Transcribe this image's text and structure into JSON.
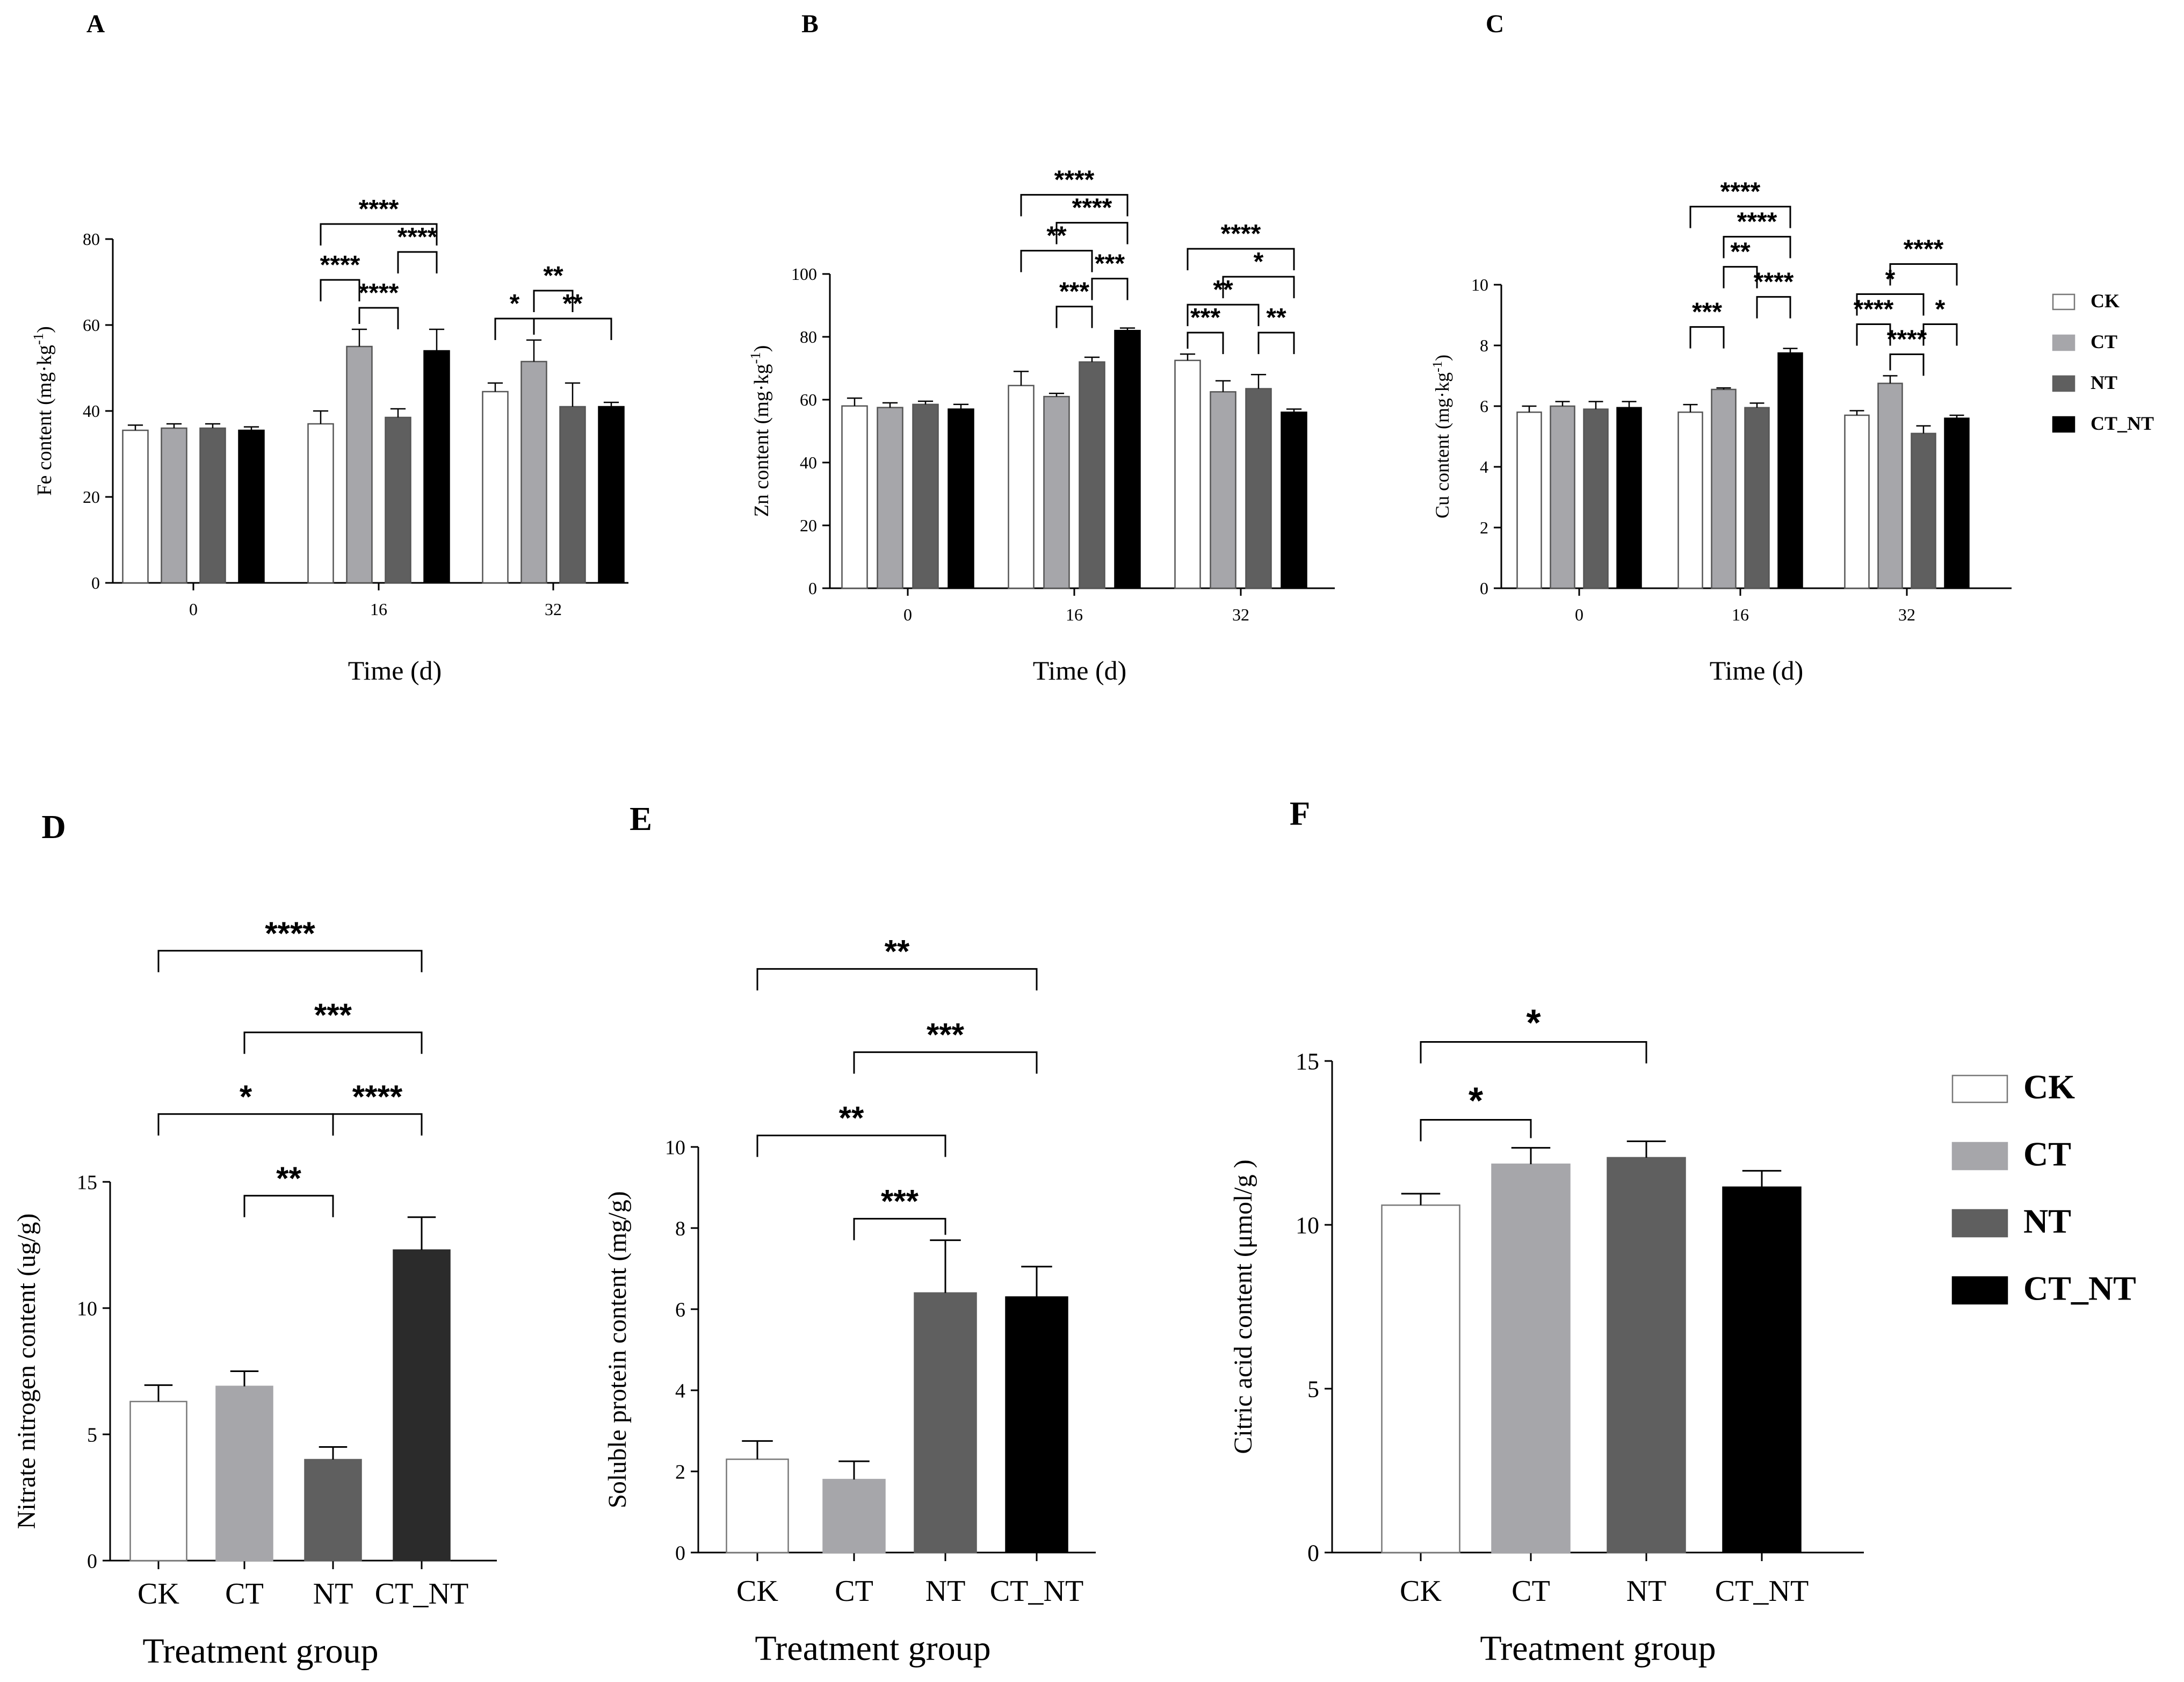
{
  "colors": {
    "CK": "#ffffff",
    "CT": "#a6a6aa",
    "NT": "#5f5f5f",
    "CT_NT": "#000000",
    "CT_NT_panel_D": "#2b2b2b",
    "outline": "#555555"
  },
  "legend_top": {
    "position": "right",
    "entries": [
      "CK",
      "CT",
      "NT",
      "CT_NT"
    ]
  },
  "legend_bottom": {
    "position": "right",
    "entries": [
      "CK",
      "CT",
      "NT",
      "CT_NT"
    ]
  },
  "chart_data": [
    {
      "panel": "A",
      "type": "bar",
      "xlabel": "Time  (d)",
      "ylabel": "Fe content (mg·kg⁻¹)",
      "ylim": [
        0,
        80
      ],
      "yticks": [
        "0",
        "20",
        "40",
        "60",
        "80"
      ],
      "categories": [
        "0",
        "16",
        "32"
      ],
      "series": [
        {
          "name": "CK",
          "values": [
            35.5,
            37.0,
            44.5
          ],
          "errors": [
            1.2,
            3.0,
            2.0
          ]
        },
        {
          "name": "CT",
          "values": [
            36.0,
            55.0,
            51.5
          ],
          "errors": [
            1.0,
            4.0,
            5.0
          ]
        },
        {
          "name": "NT",
          "values": [
            36.0,
            38.5,
            41.0
          ],
          "errors": [
            1.0,
            2.0,
            5.5
          ]
        },
        {
          "name": "CT_NT",
          "values": [
            35.5,
            54.0,
            41.0
          ],
          "errors": [
            0.8,
            5.0,
            1.0
          ]
        }
      ],
      "significance": [
        {
          "group": 1,
          "from": 0,
          "to": 1,
          "label": "****",
          "level": 1
        },
        {
          "group": 1,
          "from": 1,
          "to": 2,
          "label": "****",
          "level": 0
        },
        {
          "group": 1,
          "from": 2,
          "to": 3,
          "label": "****",
          "level": 2
        },
        {
          "group": 1,
          "from": 0,
          "to": 3,
          "label": "****",
          "level": 3
        },
        {
          "group": 2,
          "from": 0,
          "to": 1,
          "label": "*",
          "level": 0
        },
        {
          "group": 2,
          "from": 1,
          "to": 3,
          "label": "**",
          "level": 0
        },
        {
          "group": 2,
          "from": 1,
          "to": 2,
          "label": "**",
          "level": 1
        }
      ]
    },
    {
      "panel": "B",
      "type": "bar",
      "xlabel": "Time  (d)",
      "ylabel": "Zn content (mg·kg⁻¹)",
      "ylim": [
        0,
        100
      ],
      "yticks": [
        "0",
        "20",
        "40",
        "60",
        "80",
        "100"
      ],
      "categories": [
        "0",
        "16",
        "32"
      ],
      "series": [
        {
          "name": "CK",
          "values": [
            58.0,
            64.5,
            72.5
          ],
          "errors": [
            2.5,
            4.5,
            2.0
          ]
        },
        {
          "name": "CT",
          "values": [
            57.5,
            61.0,
            62.5
          ],
          "errors": [
            1.5,
            1.0,
            3.5
          ]
        },
        {
          "name": "NT",
          "values": [
            58.5,
            72.0,
            63.5
          ],
          "errors": [
            1.0,
            1.5,
            4.5
          ]
        },
        {
          "name": "CT_NT",
          "values": [
            57.0,
            82.0,
            56.0
          ],
          "errors": [
            1.5,
            0.8,
            1.0
          ]
        }
      ],
      "significance": [
        {
          "group": 1,
          "from": 1,
          "to": 2,
          "label": "***",
          "level": 0
        },
        {
          "group": 1,
          "from": 2,
          "to": 3,
          "label": "***",
          "level": 1
        },
        {
          "group": 1,
          "from": 0,
          "to": 2,
          "label": "**",
          "level": 2
        },
        {
          "group": 1,
          "from": 1,
          "to": 3,
          "label": "****",
          "level": 3
        },
        {
          "group": 1,
          "from": 0,
          "to": 3,
          "label": "****",
          "level": 4
        },
        {
          "group": 2,
          "from": 0,
          "to": 1,
          "label": "***",
          "level": 0
        },
        {
          "group": 2,
          "from": 2,
          "to": 3,
          "label": "**",
          "level": 0
        },
        {
          "group": 2,
          "from": 0,
          "to": 2,
          "label": "**",
          "level": 1
        },
        {
          "group": 2,
          "from": 1,
          "to": 3,
          "label": "*",
          "level": 2
        },
        {
          "group": 2,
          "from": 0,
          "to": 3,
          "label": "****",
          "level": 3
        }
      ]
    },
    {
      "panel": "C",
      "type": "bar",
      "xlabel": "Time  (d)",
      "ylabel": "Cu content (mg·kg⁻¹)",
      "ylim": [
        0,
        10
      ],
      "yticks": [
        "0",
        "2",
        "4",
        "6",
        "8",
        "10"
      ],
      "categories": [
        "0",
        "16",
        "32"
      ],
      "series": [
        {
          "name": "CK",
          "values": [
            5.8,
            5.8,
            5.7
          ],
          "errors": [
            0.2,
            0.25,
            0.15
          ]
        },
        {
          "name": "CT",
          "values": [
            6.0,
            6.55,
            6.75
          ],
          "errors": [
            0.15,
            0.05,
            0.25
          ]
        },
        {
          "name": "NT",
          "values": [
            5.9,
            5.95,
            5.1
          ],
          "errors": [
            0.25,
            0.15,
            0.25
          ]
        },
        {
          "name": "CT_NT",
          "values": [
            5.95,
            7.75,
            5.6
          ],
          "errors": [
            0.2,
            0.15,
            0.1
          ]
        }
      ],
      "significance": [
        {
          "group": 1,
          "from": 0,
          "to": 1,
          "label": "***",
          "level": 0
        },
        {
          "group": 1,
          "from": 2,
          "to": 3,
          "label": "****",
          "level": 1
        },
        {
          "group": 1,
          "from": 1,
          "to": 2,
          "label": "**",
          "level": 2
        },
        {
          "group": 1,
          "from": 1,
          "to": 3,
          "label": "****",
          "level": 3
        },
        {
          "group": 1,
          "from": 0,
          "to": 3,
          "label": "****",
          "level": 4
        },
        {
          "group": 2,
          "from": 1,
          "to": 2,
          "label": "****",
          "level": 0
        },
        {
          "group": 2,
          "from": 0,
          "to": 1,
          "label": "****",
          "level": 1
        },
        {
          "group": 2,
          "from": 2,
          "to": 3,
          "label": "*",
          "level": 1
        },
        {
          "group": 2,
          "from": 0,
          "to": 2,
          "label": "*",
          "level": 2
        },
        {
          "group": 2,
          "from": 1,
          "to": 3,
          "label": "****",
          "level": 3
        }
      ]
    },
    {
      "panel": "D",
      "type": "bar",
      "xlabel": "Treatment group",
      "ylabel": "Nitrate nitrogen content (ug/g)",
      "ylim": [
        0,
        15
      ],
      "yticks": [
        "0",
        "5",
        "10",
        "15"
      ],
      "categories": [
        "CK",
        "CT",
        "NT",
        "CT_NT"
      ],
      "values": [
        6.3,
        6.9,
        4.0,
        12.3
      ],
      "errors": [
        0.65,
        0.6,
        0.5,
        1.3
      ],
      "significance": [
        {
          "from": 1,
          "to": 2,
          "label": "**",
          "level": 0
        },
        {
          "from": 0,
          "to": 2,
          "label": "*",
          "level": 1
        },
        {
          "from": 2,
          "to": 3,
          "label": "****",
          "level": 1
        },
        {
          "from": 1,
          "to": 3,
          "label": "***",
          "level": 2
        },
        {
          "from": 0,
          "to": 3,
          "label": "****",
          "level": 3
        }
      ]
    },
    {
      "panel": "E",
      "type": "bar",
      "xlabel": "Treatment group",
      "ylabel": "Soluble protein content (mg/g)",
      "ylim": [
        0,
        10
      ],
      "yticks": [
        "0",
        "2",
        "4",
        "6",
        "8",
        "10"
      ],
      "categories": [
        "CK",
        "CT",
        "NT",
        "CT_NT"
      ],
      "values": [
        2.3,
        1.8,
        6.4,
        6.3
      ],
      "errors": [
        0.45,
        0.45,
        1.3,
        0.75
      ],
      "significance": [
        {
          "from": 1,
          "to": 2,
          "label": "***",
          "level": 0
        },
        {
          "from": 0,
          "to": 2,
          "label": "**",
          "level": 1
        },
        {
          "from": 1,
          "to": 3,
          "label": "***",
          "level": 2
        },
        {
          "from": 0,
          "to": 3,
          "label": "**",
          "level": 3
        }
      ]
    },
    {
      "panel": "F",
      "type": "bar",
      "xlabel": "Treatment group",
      "ylabel": "Citric acid content (μmol/g )",
      "ylim": [
        0,
        15
      ],
      "yticks": [
        "0",
        "5",
        "10",
        "15"
      ],
      "categories": [
        "CK",
        "CT",
        "NT",
        "CT_NT"
      ],
      "values": [
        10.6,
        11.85,
        12.05,
        11.15
      ],
      "errors": [
        0.35,
        0.5,
        0.5,
        0.5
      ],
      "significance": [
        {
          "from": 0,
          "to": 1,
          "label": "*",
          "level": 0
        },
        {
          "from": 0,
          "to": 2,
          "label": "*",
          "level": 1
        }
      ]
    }
  ]
}
